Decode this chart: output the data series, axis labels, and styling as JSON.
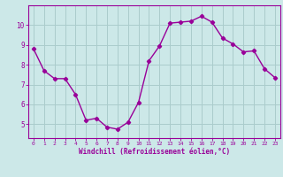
{
  "x": [
    0,
    1,
    2,
    3,
    4,
    5,
    6,
    7,
    8,
    9,
    10,
    11,
    12,
    13,
    14,
    15,
    16,
    17,
    18,
    19,
    20,
    21,
    22,
    23
  ],
  "y": [
    8.8,
    7.7,
    7.3,
    7.3,
    6.5,
    5.2,
    5.3,
    4.85,
    4.75,
    5.1,
    6.1,
    8.2,
    8.95,
    10.1,
    10.15,
    10.2,
    10.45,
    10.15,
    9.35,
    9.05,
    8.65,
    8.7,
    7.8,
    7.35
  ],
  "line_color": "#990099",
  "marker": "D",
  "marker_size": 2.2,
  "line_width": 1.0,
  "bg_color": "#cce8e8",
  "grid_color": "#aacccc",
  "xlabel": "Windchill (Refroidissement éolien,°C)",
  "xlabel_color": "#990099",
  "tick_color": "#990099",
  "axis_color": "#990099",
  "ylim": [
    4.3,
    11.0
  ],
  "xlim": [
    -0.5,
    23.5
  ],
  "yticks": [
    5,
    6,
    7,
    8,
    9,
    10
  ],
  "xticks": [
    0,
    1,
    2,
    3,
    4,
    5,
    6,
    7,
    8,
    9,
    10,
    11,
    12,
    13,
    14,
    15,
    16,
    17,
    18,
    19,
    20,
    21,
    22,
    23
  ],
  "title": ""
}
